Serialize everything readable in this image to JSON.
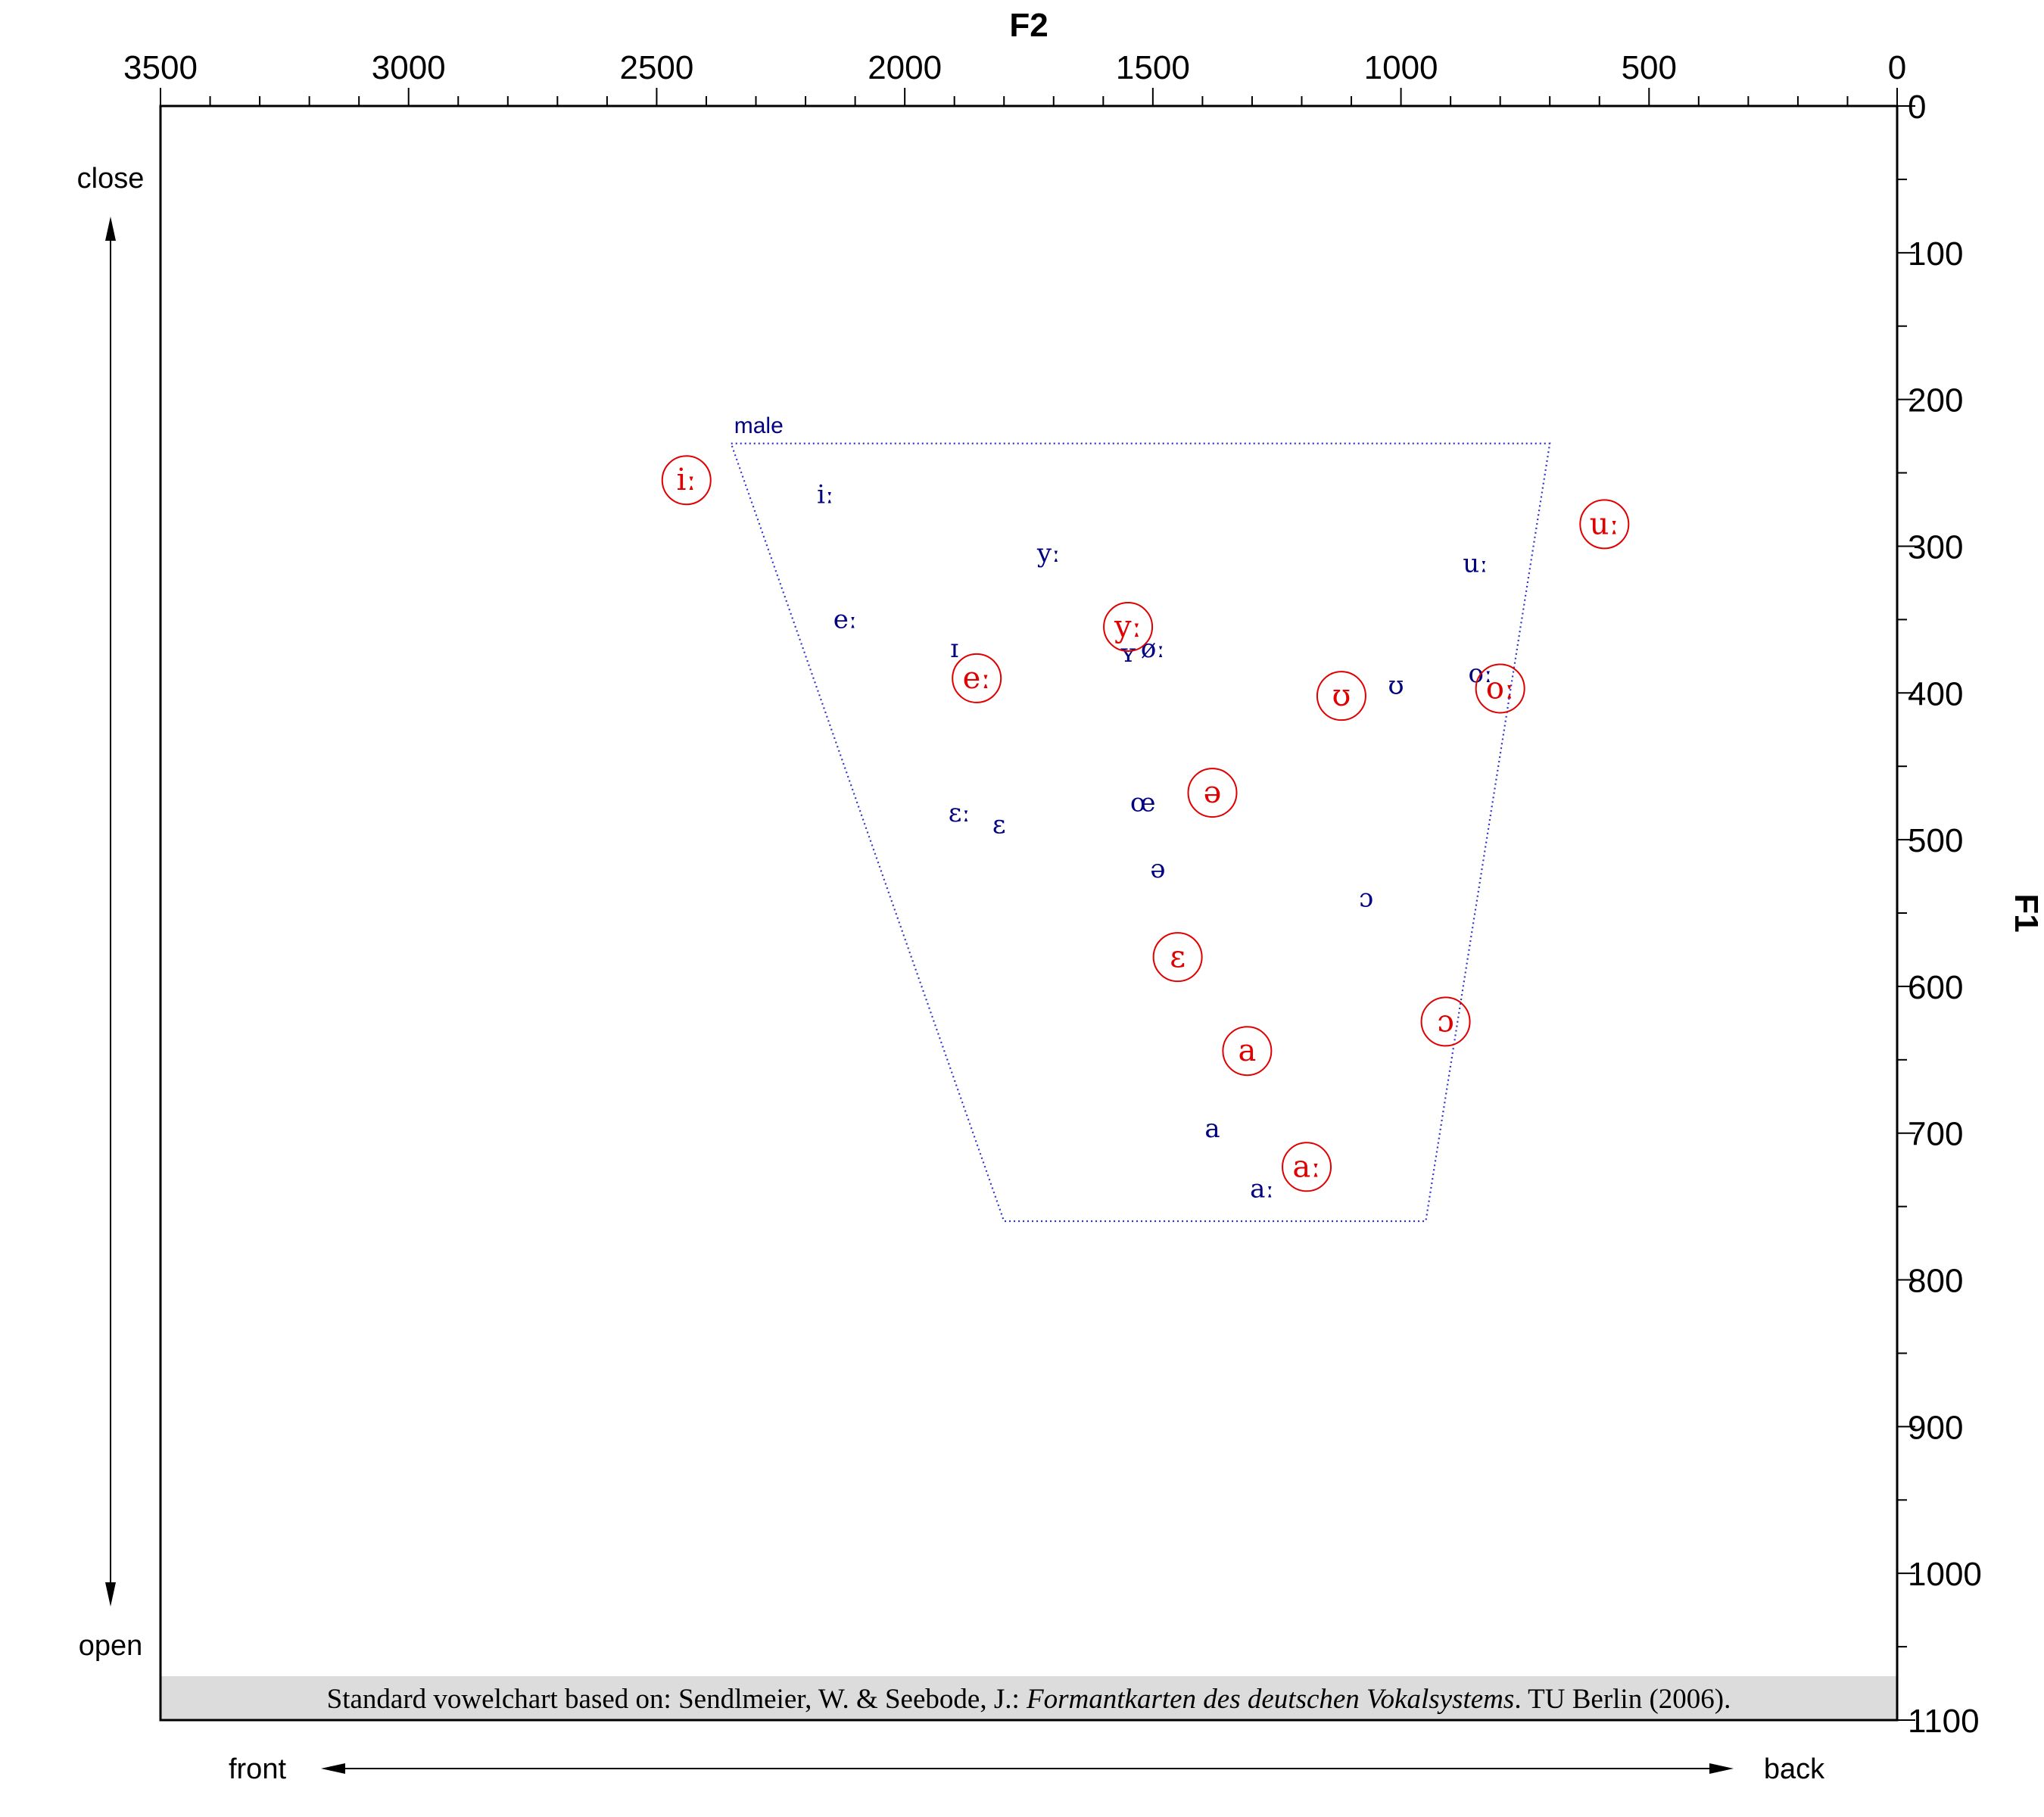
{
  "chart_data": {
    "type": "scatter",
    "xlabel": "F2",
    "ylabel": "F1",
    "xlim": [
      3500,
      0
    ],
    "ylim": [
      0,
      1100
    ],
    "x_ticks": [
      3500,
      3000,
      2500,
      2000,
      1500,
      1000,
      500,
      0
    ],
    "y_ticks": [
      0,
      100,
      200,
      300,
      400,
      500,
      600,
      700,
      800,
      900,
      1000,
      1100
    ],
    "x_minor_step": 100,
    "y_minor_step": 50,
    "grid": false,
    "direction_labels": {
      "close": "close",
      "open": "open",
      "front": "front",
      "back": "back"
    },
    "region": {
      "label": "male",
      "color": "#3333cc",
      "corners": [
        {
          "f2": 2350,
          "f1": 230
        },
        {
          "f2": 700,
          "f1": 230
        },
        {
          "f2": 950,
          "f1": 760
        },
        {
          "f2": 1800,
          "f1": 760
        }
      ]
    },
    "series": [
      {
        "name": "male",
        "color": "#000080",
        "points": [
          {
            "label": "iː",
            "f2": 2160,
            "f1": 265
          },
          {
            "label": "yː",
            "f2": 1710,
            "f1": 305
          },
          {
            "label": "uː",
            "f2": 850,
            "f1": 312
          },
          {
            "label": "eː",
            "f2": 2120,
            "f1": 350
          },
          {
            "label": "ɪ",
            "f2": 1900,
            "f1": 370
          },
          {
            "label": "ʏ",
            "f2": 1550,
            "f1": 373
          },
          {
            "label": "øː",
            "f2": 1500,
            "f1": 370
          },
          {
            "label": "oː",
            "f2": 840,
            "f1": 387
          },
          {
            "label": "ʊ",
            "f2": 1010,
            "f1": 395
          },
          {
            "label": "ɛː",
            "f2": 1890,
            "f1": 482
          },
          {
            "label": "ɛ",
            "f2": 1810,
            "f1": 490
          },
          {
            "label": "œ",
            "f2": 1520,
            "f1": 475
          },
          {
            "label": "ə",
            "f2": 1490,
            "f1": 520
          },
          {
            "label": "ɔ",
            "f2": 1070,
            "f1": 540
          },
          {
            "label": "a",
            "f2": 1380,
            "f1": 697
          },
          {
            "label": "aː",
            "f2": 1280,
            "f1": 738
          }
        ]
      },
      {
        "name": "",
        "color": "#e00000",
        "points": [
          {
            "label": "iː",
            "f2": 2440,
            "f1": 255
          },
          {
            "label": "uː",
            "f2": 590,
            "f1": 285
          },
          {
            "label": "yː",
            "f2": 1550,
            "f1": 355
          },
          {
            "label": "eː",
            "f2": 1855,
            "f1": 390
          },
          {
            "label": "ʊ",
            "f2": 1120,
            "f1": 402
          },
          {
            "label": "oː",
            "f2": 800,
            "f1": 397
          },
          {
            "label": "ə",
            "f2": 1380,
            "f1": 468
          },
          {
            "label": "ɛ",
            "f2": 1450,
            "f1": 580
          },
          {
            "label": "ɔ",
            "f2": 910,
            "f1": 624
          },
          {
            "label": "a",
            "f2": 1310,
            "f1": 644
          },
          {
            "label": "aː",
            "f2": 1190,
            "f1": 723
          }
        ]
      }
    ],
    "caption": {
      "prefix": "Standard vowelchart based on: Sendlmeier, W. & Seebode, J.: ",
      "italic": "Formantkarten des deutschen Vokalsystems",
      "suffix": ". TU Berlin (2006)."
    }
  }
}
